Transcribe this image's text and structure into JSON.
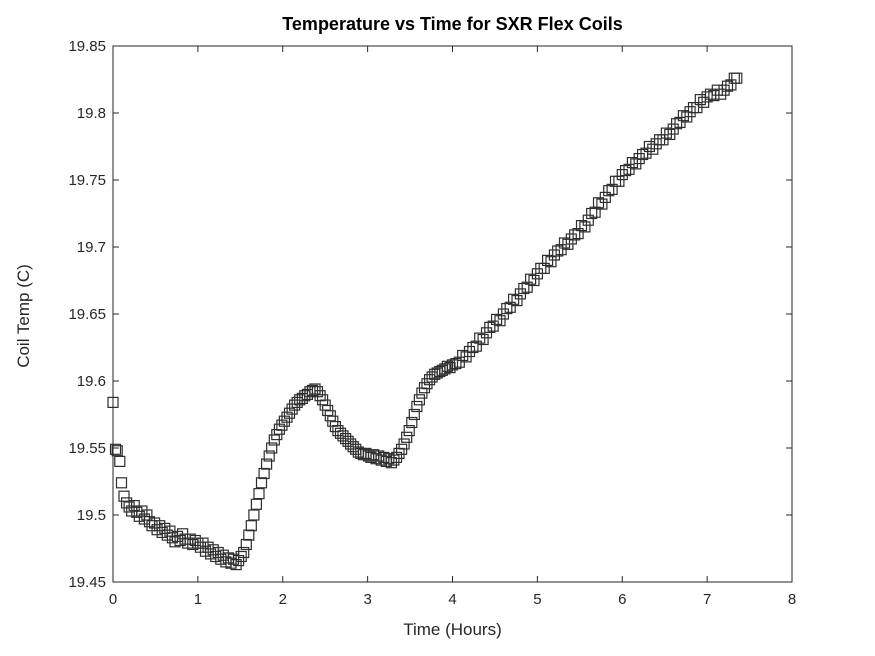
{
  "colors": {
    "background": "#ffffff",
    "axis": "#262626",
    "marker": "#2e2e2e",
    "title_text": "#000000",
    "tick_label_text": "#262626"
  },
  "chart_data": {
    "type": "scatter",
    "title": "Temperature vs Time for SXR Flex Coils",
    "xlabel": "Time (Hours)",
    "ylabel": "Coil Temp (C)",
    "xlim": [
      0,
      8
    ],
    "ylim": [
      19.45,
      19.85
    ],
    "xticks": [
      0,
      1,
      2,
      3,
      4,
      5,
      6,
      7,
      8
    ],
    "xtick_labels": [
      "0",
      "1",
      "2",
      "3",
      "4",
      "5",
      "6",
      "7",
      "8"
    ],
    "yticks": [
      19.45,
      19.5,
      19.55,
      19.6,
      19.65,
      19.7,
      19.75,
      19.8,
      19.85
    ],
    "ytick_labels": [
      "19.45",
      "19.5",
      "19.55",
      "19.6",
      "19.65",
      "19.7",
      "19.75",
      "19.8",
      "19.85"
    ],
    "grid": false,
    "legend": null,
    "marker": "open-square",
    "marker_size": 10,
    "marker_color": "#2e2e2e",
    "points": [
      [
        0.0,
        19.584
      ],
      [
        0.03,
        19.549
      ],
      [
        0.05,
        19.548
      ],
      [
        0.08,
        19.54
      ],
      [
        0.1,
        19.524
      ],
      [
        0.13,
        19.514
      ],
      [
        0.16,
        19.509
      ],
      [
        0.19,
        19.506
      ],
      [
        0.22,
        19.503
      ],
      [
        0.25,
        19.507
      ],
      [
        0.28,
        19.502
      ],
      [
        0.31,
        19.499
      ],
      [
        0.34,
        19.503
      ],
      [
        0.37,
        19.497
      ],
      [
        0.4,
        19.5
      ],
      [
        0.43,
        19.495
      ],
      [
        0.46,
        19.492
      ],
      [
        0.49,
        19.494
      ],
      [
        0.52,
        19.489
      ],
      [
        0.55,
        19.492
      ],
      [
        0.58,
        19.487
      ],
      [
        0.61,
        19.49
      ],
      [
        0.64,
        19.485
      ],
      [
        0.67,
        19.488
      ],
      [
        0.7,
        19.483
      ],
      [
        0.73,
        19.48
      ],
      [
        0.76,
        19.484
      ],
      [
        0.79,
        19.481
      ],
      [
        0.82,
        19.486
      ],
      [
        0.85,
        19.482
      ],
      [
        0.88,
        19.479
      ],
      [
        0.91,
        19.482
      ],
      [
        0.94,
        19.478
      ],
      [
        0.97,
        19.481
      ],
      [
        1.0,
        19.479
      ],
      [
        1.03,
        19.476
      ],
      [
        1.06,
        19.479
      ],
      [
        1.09,
        19.473
      ],
      [
        1.12,
        19.476
      ],
      [
        1.15,
        19.471
      ],
      [
        1.18,
        19.474
      ],
      [
        1.21,
        19.469
      ],
      [
        1.24,
        19.472
      ],
      [
        1.27,
        19.467
      ],
      [
        1.3,
        19.47
      ],
      [
        1.33,
        19.465
      ],
      [
        1.36,
        19.468
      ],
      [
        1.39,
        19.464
      ],
      [
        1.42,
        19.467
      ],
      [
        1.45,
        19.463
      ],
      [
        1.48,
        19.466
      ],
      [
        1.51,
        19.469
      ],
      [
        1.54,
        19.472
      ],
      [
        1.57,
        19.478
      ],
      [
        1.6,
        19.485
      ],
      [
        1.63,
        19.492
      ],
      [
        1.66,
        19.5
      ],
      [
        1.69,
        19.508
      ],
      [
        1.72,
        19.516
      ],
      [
        1.75,
        19.524
      ],
      [
        1.78,
        19.531
      ],
      [
        1.81,
        19.538
      ],
      [
        1.84,
        19.544
      ],
      [
        1.87,
        19.55
      ],
      [
        1.9,
        19.556
      ],
      [
        1.93,
        19.56
      ],
      [
        1.96,
        19.564
      ],
      [
        1.99,
        19.567
      ],
      [
        2.02,
        19.57
      ],
      [
        2.05,
        19.573
      ],
      [
        2.08,
        19.576
      ],
      [
        2.11,
        19.579
      ],
      [
        2.14,
        19.582
      ],
      [
        2.17,
        19.584
      ],
      [
        2.2,
        19.586
      ],
      [
        2.23,
        19.587
      ],
      [
        2.26,
        19.589
      ],
      [
        2.29,
        19.59
      ],
      [
        2.32,
        19.592
      ],
      [
        2.35,
        19.593
      ],
      [
        2.38,
        19.594
      ],
      [
        2.41,
        19.592
      ],
      [
        2.44,
        19.589
      ],
      [
        2.47,
        19.586
      ],
      [
        2.5,
        19.582
      ],
      [
        2.53,
        19.578
      ],
      [
        2.56,
        19.574
      ],
      [
        2.59,
        19.57
      ],
      [
        2.62,
        19.566
      ],
      [
        2.65,
        19.563
      ],
      [
        2.68,
        19.561
      ],
      [
        2.71,
        19.559
      ],
      [
        2.74,
        19.557
      ],
      [
        2.77,
        19.555
      ],
      [
        2.8,
        19.553
      ],
      [
        2.83,
        19.551
      ],
      [
        2.86,
        19.549
      ],
      [
        2.89,
        19.547
      ],
      [
        2.92,
        19.546
      ],
      [
        2.95,
        19.545
      ],
      [
        2.98,
        19.546
      ],
      [
        3.01,
        19.544
      ],
      [
        3.04,
        19.543
      ],
      [
        3.07,
        19.545
      ],
      [
        3.1,
        19.542
      ],
      [
        3.13,
        19.544
      ],
      [
        3.16,
        19.541
      ],
      [
        3.19,
        19.543
      ],
      [
        3.22,
        19.54
      ],
      [
        3.25,
        19.542
      ],
      [
        3.28,
        19.539
      ],
      [
        3.31,
        19.541
      ],
      [
        3.34,
        19.543
      ],
      [
        3.37,
        19.546
      ],
      [
        3.4,
        19.549
      ],
      [
        3.43,
        19.553
      ],
      [
        3.46,
        19.558
      ],
      [
        3.49,
        19.563
      ],
      [
        3.52,
        19.569
      ],
      [
        3.55,
        19.575
      ],
      [
        3.58,
        19.581
      ],
      [
        3.61,
        19.586
      ],
      [
        3.64,
        19.591
      ],
      [
        3.67,
        19.595
      ],
      [
        3.7,
        19.598
      ],
      [
        3.73,
        19.601
      ],
      [
        3.76,
        19.603
      ],
      [
        3.79,
        19.605
      ],
      [
        3.82,
        19.606
      ],
      [
        3.85,
        19.607
      ],
      [
        3.88,
        19.608
      ],
      [
        3.91,
        19.609
      ],
      [
        3.94,
        19.611
      ],
      [
        3.97,
        19.61
      ],
      [
        4.0,
        19.612
      ],
      [
        4.04,
        19.613
      ],
      [
        4.08,
        19.614
      ],
      [
        4.12,
        19.619
      ],
      [
        4.16,
        19.618
      ],
      [
        4.2,
        19.622
      ],
      [
        4.24,
        19.625
      ],
      [
        4.28,
        19.626
      ],
      [
        4.32,
        19.632
      ],
      [
        4.36,
        19.631
      ],
      [
        4.4,
        19.636
      ],
      [
        4.44,
        19.64
      ],
      [
        4.48,
        19.641
      ],
      [
        4.52,
        19.646
      ],
      [
        4.56,
        19.645
      ],
      [
        4.6,
        19.65
      ],
      [
        4.64,
        19.654
      ],
      [
        4.68,
        19.655
      ],
      [
        4.72,
        19.661
      ],
      [
        4.76,
        19.66
      ],
      [
        4.8,
        19.665
      ],
      [
        4.84,
        19.669
      ],
      [
        4.88,
        19.67
      ],
      [
        4.92,
        19.676
      ],
      [
        4.96,
        19.675
      ],
      [
        5.0,
        19.68
      ],
      [
        5.04,
        19.684
      ],
      [
        5.08,
        19.684
      ],
      [
        5.12,
        19.69
      ],
      [
        5.16,
        19.689
      ],
      [
        5.2,
        19.694
      ],
      [
        5.24,
        19.697
      ],
      [
        5.28,
        19.698
      ],
      [
        5.32,
        19.703
      ],
      [
        5.36,
        19.702
      ],
      [
        5.4,
        19.706
      ],
      [
        5.44,
        19.709
      ],
      [
        5.48,
        19.71
      ],
      [
        5.52,
        19.716
      ],
      [
        5.56,
        19.715
      ],
      [
        5.6,
        19.72
      ],
      [
        5.64,
        19.725
      ],
      [
        5.68,
        19.726
      ],
      [
        5.72,
        19.733
      ],
      [
        5.76,
        19.732
      ],
      [
        5.8,
        19.737
      ],
      [
        5.84,
        19.742
      ],
      [
        5.88,
        19.743
      ],
      [
        5.92,
        19.749
      ],
      [
        5.96,
        19.749
      ],
      [
        6.0,
        19.754
      ],
      [
        6.04,
        19.757
      ],
      [
        6.08,
        19.758
      ],
      [
        6.12,
        19.763
      ],
      [
        6.16,
        19.762
      ],
      [
        6.2,
        19.766
      ],
      [
        6.24,
        19.769
      ],
      [
        6.28,
        19.77
      ],
      [
        6.32,
        19.775
      ],
      [
        6.36,
        19.773
      ],
      [
        6.4,
        19.777
      ],
      [
        6.44,
        19.78
      ],
      [
        6.48,
        19.78
      ],
      [
        6.52,
        19.785
      ],
      [
        6.56,
        19.784
      ],
      [
        6.6,
        19.788
      ],
      [
        6.64,
        19.792
      ],
      [
        6.68,
        19.793
      ],
      [
        6.72,
        19.798
      ],
      [
        6.76,
        19.797
      ],
      [
        6.8,
        19.801
      ],
      [
        6.84,
        19.804
      ],
      [
        6.88,
        19.804
      ],
      [
        6.92,
        19.81
      ],
      [
        6.96,
        19.808
      ],
      [
        7.0,
        19.812
      ],
      [
        7.04,
        19.814
      ],
      [
        7.08,
        19.813
      ],
      [
        7.12,
        19.817
      ],
      [
        7.16,
        19.814
      ],
      [
        7.2,
        19.817
      ],
      [
        7.24,
        19.82
      ],
      [
        7.28,
        19.821
      ],
      [
        7.32,
        19.826
      ],
      [
        7.35,
        19.826
      ]
    ]
  }
}
